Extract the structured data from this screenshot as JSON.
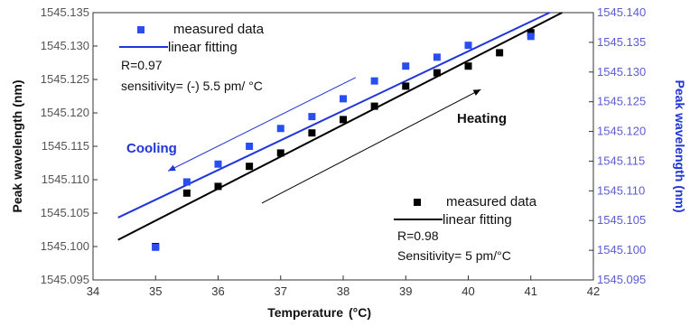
{
  "chart_data": {
    "type": "scatter",
    "xlabel": "Temperature",
    "xlabel_unit": "(°C)",
    "ylabel_left": "Peak wavelength (nm)",
    "ylabel_right": "Peak wavelength (nm)",
    "xlim": [
      34,
      42
    ],
    "ylim_left": [
      1545.095,
      1545.135
    ],
    "ylim_right": [
      1545.095,
      1545.14
    ],
    "x_ticks": [
      "34",
      "35",
      "36",
      "37",
      "38",
      "39",
      "40",
      "41",
      "42"
    ],
    "y_left_ticks": [
      "1545.095",
      "1545.100",
      "1545.105",
      "1545.110",
      "1545.115",
      "1545.120",
      "1545.125",
      "1545.130",
      "1545.135"
    ],
    "y_right_ticks": [
      "1545.095",
      "1545.100",
      "1545.105",
      "1545.110",
      "1545.115",
      "1545.120",
      "1545.125",
      "1545.130",
      "1545.135",
      "1545.140"
    ],
    "colors": {
      "heating": "#000000",
      "cooling": "#1f35d8",
      "cooling_marker": "#2a4df0",
      "right_axis": "#5b5bd6"
    },
    "series": [
      {
        "name": "measured data",
        "group": "heating",
        "axis": "left",
        "x": [
          35,
          35.5,
          36,
          36.5,
          37,
          37.5,
          38,
          38.5,
          39,
          39.5,
          40,
          40.5,
          41
        ],
        "y": [
          1545.1,
          1545.108,
          1545.109,
          1545.112,
          1545.114,
          1545.117,
          1545.119,
          1545.121,
          1545.124,
          1545.126,
          1545.127,
          1545.129,
          1545.132
        ]
      },
      {
        "name": "linear fitting",
        "group": "heating",
        "axis": "left",
        "kind": "line",
        "x": [
          34.4,
          41.5
        ],
        "y": [
          1545.101,
          1545.135
        ]
      },
      {
        "name": "measured data",
        "group": "cooling",
        "axis": "right",
        "x": [
          35,
          35.5,
          36,
          36.5,
          37,
          37.5,
          38,
          38.5,
          39,
          39.5,
          40,
          41
        ],
        "y": [
          1545.1005,
          1545.1115,
          1545.1145,
          1545.1175,
          1545.1205,
          1545.1225,
          1545.1255,
          1545.1285,
          1545.131,
          1545.1325,
          1545.1345,
          1545.136
        ]
      },
      {
        "name": "linear fitting",
        "group": "cooling",
        "axis": "right",
        "kind": "line",
        "x": [
          34.4,
          41.3
        ],
        "y": [
          1545.1055,
          1545.14
        ]
      }
    ],
    "arrows": [
      {
        "label": "Heating",
        "from": [
          36.7,
          1545.1065
        ],
        "to": [
          40.2,
          1545.1235
        ]
      },
      {
        "label": "Cooling",
        "from": [
          38.2,
          1545.1253
        ],
        "to": [
          35.2,
          1545.1113
        ]
      }
    ]
  },
  "legend_top": {
    "marker_label": "measured data",
    "line_label": "linear fitting",
    "r_text": "R=0.97",
    "sensitivity_text": "sensitivity= (-) 5.5 pm/ °C"
  },
  "legend_bottom": {
    "marker_label": "measured data",
    "line_label": "linear fitting",
    "r_text": "R=0.98",
    "sensitivity_text": "Sensitivity= 5 pm/°C"
  },
  "labels": {
    "heating": "Heating",
    "cooling": "Cooling"
  }
}
